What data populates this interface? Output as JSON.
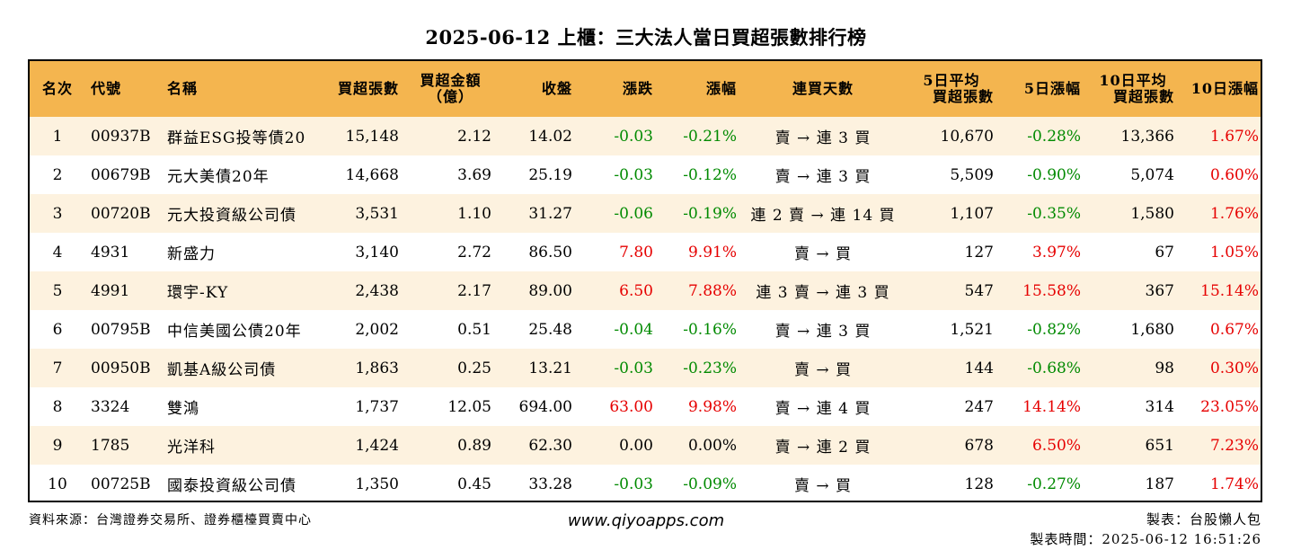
{
  "title": "2025-06-12 上櫃：三大法人當日買超張數排行榜",
  "headers": {
    "rank": "名次",
    "code": "代號",
    "name": "名稱",
    "buy_lots": "買超張數",
    "buy_amount_1": "買超金額",
    "buy_amount_2": "（億）",
    "close": "收盤",
    "change": "漲跌",
    "change_pct": "漲幅",
    "streak": "連買天數",
    "avg5_1": "5日平均",
    "avg5_2": "買超張數",
    "pct5": "5日漲幅",
    "avg10_1": "10日平均",
    "avg10_2": "買超張數",
    "pct10": "10日漲幅"
  },
  "rows": [
    {
      "rank": "1",
      "code": "00937B",
      "name": "群益ESG投等債20",
      "buy_lots": "15,148",
      "buy_amount": "2.12",
      "close": "14.02",
      "change": "-0.03",
      "change_pct": "-0.21%",
      "streak": "賣 → 連 3 買",
      "avg5": "10,670",
      "pct5": "-0.28%",
      "avg10": "13,366",
      "pct10": "1.67%"
    },
    {
      "rank": "2",
      "code": "00679B",
      "name": "元大美債20年",
      "buy_lots": "14,668",
      "buy_amount": "3.69",
      "close": "25.19",
      "change": "-0.03",
      "change_pct": "-0.12%",
      "streak": "賣 → 連 3 買",
      "avg5": "5,509",
      "pct5": "-0.90%",
      "avg10": "5,074",
      "pct10": "0.60%"
    },
    {
      "rank": "3",
      "code": "00720B",
      "name": "元大投資級公司債",
      "buy_lots": "3,531",
      "buy_amount": "1.10",
      "close": "31.27",
      "change": "-0.06",
      "change_pct": "-0.19%",
      "streak": "連 2 賣 → 連 14 買",
      "avg5": "1,107",
      "pct5": "-0.35%",
      "avg10": "1,580",
      "pct10": "1.76%"
    },
    {
      "rank": "4",
      "code": "4931",
      "name": "新盛力",
      "buy_lots": "3,140",
      "buy_amount": "2.72",
      "close": "86.50",
      "change": "7.80",
      "change_pct": "9.91%",
      "streak": "賣 → 買",
      "avg5": "127",
      "pct5": "3.97%",
      "avg10": "67",
      "pct10": "1.05%"
    },
    {
      "rank": "5",
      "code": "4991",
      "name": "環宇-KY",
      "buy_lots": "2,438",
      "buy_amount": "2.17",
      "close": "89.00",
      "change": "6.50",
      "change_pct": "7.88%",
      "streak": "連 3 賣 → 連 3 買",
      "avg5": "547",
      "pct5": "15.58%",
      "avg10": "367",
      "pct10": "15.14%"
    },
    {
      "rank": "6",
      "code": "00795B",
      "name": "中信美國公債20年",
      "buy_lots": "2,002",
      "buy_amount": "0.51",
      "close": "25.48",
      "change": "-0.04",
      "change_pct": "-0.16%",
      "streak": "賣 → 連 3 買",
      "avg5": "1,521",
      "pct5": "-0.82%",
      "avg10": "1,680",
      "pct10": "0.67%"
    },
    {
      "rank": "7",
      "code": "00950B",
      "name": "凱基A級公司債",
      "buy_lots": "1,863",
      "buy_amount": "0.25",
      "close": "13.21",
      "change": "-0.03",
      "change_pct": "-0.23%",
      "streak": "賣 → 買",
      "avg5": "144",
      "pct5": "-0.68%",
      "avg10": "98",
      "pct10": "0.30%"
    },
    {
      "rank": "8",
      "code": "3324",
      "name": "雙鴻",
      "buy_lots": "1,737",
      "buy_amount": "12.05",
      "close": "694.00",
      "change": "63.00",
      "change_pct": "9.98%",
      "streak": "賣 → 連 4 買",
      "avg5": "247",
      "pct5": "14.14%",
      "avg10": "314",
      "pct10": "23.05%"
    },
    {
      "rank": "9",
      "code": "1785",
      "name": "光洋科",
      "buy_lots": "1,424",
      "buy_amount": "0.89",
      "close": "62.30",
      "change": "0.00",
      "change_pct": "0.00%",
      "streak": "賣 → 連 2 買",
      "avg5": "678",
      "pct5": "6.50%",
      "avg10": "651",
      "pct10": "7.23%"
    },
    {
      "rank": "10",
      "code": "00725B",
      "name": "國泰投資級公司債",
      "buy_lots": "1,350",
      "buy_amount": "0.45",
      "close": "33.28",
      "change": "-0.03",
      "change_pct": "-0.09%",
      "streak": "賣 → 買",
      "avg5": "128",
      "pct5": "-0.27%",
      "avg10": "187",
      "pct10": "1.74%"
    }
  ],
  "footer": {
    "source": "資料來源：台灣證券交易所、證券櫃檯買賣中心",
    "website": "www.qiyoapps.com",
    "maker": "製表：台股懶人包",
    "made_time": "製表時間：2025-06-12 16:51:26"
  },
  "colors": {
    "header_bg": "#f4b54f",
    "stripe_bg": "#fdf2df",
    "up": "#e60000",
    "down": "#008a00"
  }
}
